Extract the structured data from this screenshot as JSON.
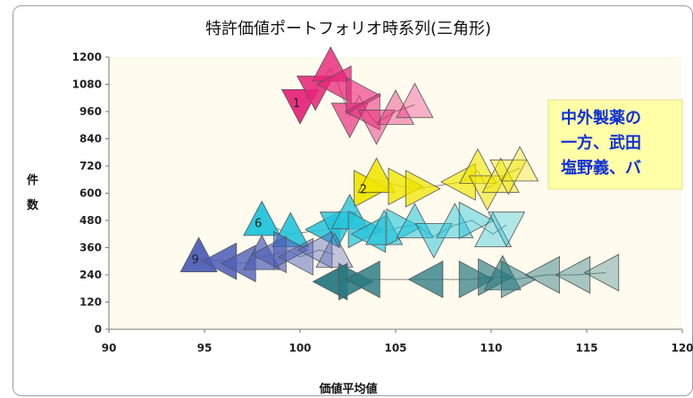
{
  "chart_data": {
    "type": "scatter",
    "title": "特許価値ポートフォリオ時系列(三角形)",
    "xlabel": "価値平均値",
    "ylabel": "件数",
    "xlim": [
      90,
      120
    ],
    "ylim": [
      0,
      1200
    ],
    "xticks": [
      "90",
      "95",
      "100",
      "105",
      "110",
      "115",
      "120"
    ],
    "yticks": [
      "0",
      "120",
      "240",
      "360",
      "480",
      "600",
      "720",
      "840",
      "960",
      "1080",
      "1200"
    ],
    "grid": false,
    "marker": "triangle",
    "note": [
      "中外製薬の",
      "一方、武田",
      "塩野義、バ"
    ],
    "series": [
      {
        "label": "1",
        "color": "#e8267a",
        "points": [
          {
            "x": 100.0,
            "y": 1000,
            "dir": "down"
          },
          {
            "x": 100.8,
            "y": 1060,
            "dir": "down"
          },
          {
            "x": 101.6,
            "y": 1150,
            "dir": "up"
          },
          {
            "x": 102.0,
            "y": 1080,
            "dir": "left"
          },
          {
            "x": 102.6,
            "y": 940,
            "dir": "down"
          },
          {
            "x": 103.1,
            "y": 1030,
            "dir": "right"
          },
          {
            "x": 103.5,
            "y": 960,
            "dir": "left"
          },
          {
            "x": 104.0,
            "y": 910,
            "dir": "down"
          },
          {
            "x": 105.0,
            "y": 960,
            "dir": "up"
          },
          {
            "x": 106.0,
            "y": 990,
            "dir": "up"
          }
        ]
      },
      {
        "label": "2",
        "color": "#f0e600",
        "points": [
          {
            "x": 103.5,
            "y": 620,
            "dir": "right"
          },
          {
            "x": 104.0,
            "y": 660,
            "dir": "up"
          },
          {
            "x": 105.3,
            "y": 630,
            "dir": "right"
          },
          {
            "x": 106.2,
            "y": 620,
            "dir": "right"
          },
          {
            "x": 108.5,
            "y": 650,
            "dir": "left"
          },
          {
            "x": 109.3,
            "y": 700,
            "dir": "up"
          },
          {
            "x": 109.8,
            "y": 620,
            "dir": "down"
          },
          {
            "x": 110.5,
            "y": 660,
            "dir": "up"
          },
          {
            "x": 110.9,
            "y": 690,
            "dir": "down"
          },
          {
            "x": 111.5,
            "y": 710,
            "dir": "up"
          }
        ]
      },
      {
        "label": "6",
        "color": "#22c4dc",
        "points": [
          {
            "x": 98.0,
            "y": 470,
            "dir": "up"
          },
          {
            "x": 99.5,
            "y": 420,
            "dir": "up"
          },
          {
            "x": 101.4,
            "y": 440,
            "dir": "left"
          },
          {
            "x": 102.0,
            "y": 460,
            "dir": "down"
          },
          {
            "x": 102.6,
            "y": 500,
            "dir": "up"
          },
          {
            "x": 103.2,
            "y": 440,
            "dir": "right"
          },
          {
            "x": 103.8,
            "y": 420,
            "dir": "left"
          },
          {
            "x": 104.4,
            "y": 430,
            "dir": "up"
          },
          {
            "x": 105.2,
            "y": 450,
            "dir": "right"
          },
          {
            "x": 106.0,
            "y": 460,
            "dir": "up"
          },
          {
            "x": 107.0,
            "y": 410,
            "dir": "down"
          },
          {
            "x": 108.1,
            "y": 460,
            "dir": "up"
          },
          {
            "x": 109.0,
            "y": 480,
            "dir": "right"
          },
          {
            "x": 110.1,
            "y": 420,
            "dir": "up"
          },
          {
            "x": 110.8,
            "y": 460,
            "dir": "down"
          }
        ]
      },
      {
        "label": "9",
        "color": "#4f5fb8",
        "points": [
          {
            "x": 94.7,
            "y": 310,
            "dir": "up"
          },
          {
            "x": 96.0,
            "y": 300,
            "dir": "left"
          },
          {
            "x": 97.0,
            "y": 290,
            "dir": "left"
          },
          {
            "x": 98.0,
            "y": 320,
            "dir": "up"
          },
          {
            "x": 98.6,
            "y": 330,
            "dir": "left"
          },
          {
            "x": 99.3,
            "y": 350,
            "dir": "right"
          },
          {
            "x": 100.0,
            "y": 320,
            "dir": "left"
          },
          {
            "x": 101.0,
            "y": 350,
            "dir": "left"
          },
          {
            "x": 101.8,
            "y": 330,
            "dir": "up"
          }
        ]
      },
      {
        "label": "",
        "color": "#2a7a82",
        "points": [
          {
            "x": 101.8,
            "y": 210,
            "dir": "left"
          },
          {
            "x": 102.7,
            "y": 210,
            "dir": "right"
          },
          {
            "x": 103.5,
            "y": 220,
            "dir": "left"
          },
          {
            "x": 106.8,
            "y": 220,
            "dir": "left"
          },
          {
            "x": 109.0,
            "y": 220,
            "dir": "right"
          },
          {
            "x": 110.0,
            "y": 230,
            "dir": "right"
          },
          {
            "x": 110.6,
            "y": 230,
            "dir": "up"
          },
          {
            "x": 111.2,
            "y": 220,
            "dir": "right"
          },
          {
            "x": 112.9,
            "y": 240,
            "dir": "left"
          },
          {
            "x": 114.5,
            "y": 240,
            "dir": "left"
          },
          {
            "x": 116.0,
            "y": 250,
            "dir": "left"
          }
        ]
      }
    ]
  }
}
